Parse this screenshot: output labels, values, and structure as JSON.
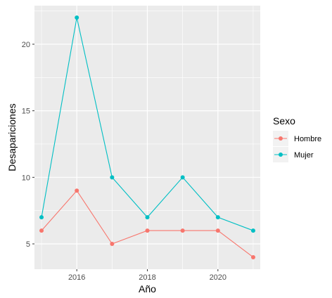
{
  "chart_data": {
    "type": "line",
    "title": "",
    "xlabel": "Año",
    "ylabel": "Desapariciones",
    "x": [
      2015,
      2016,
      2017,
      2018,
      2019,
      2020,
      2021
    ],
    "xlim": [
      2014.8,
      2021.2
    ],
    "ylim": [
      3.1,
      22.9
    ],
    "x_ticks": [
      2016,
      2018,
      2020
    ],
    "y_ticks": [
      5,
      10,
      15,
      20
    ],
    "x_tick_labels": [
      "2016",
      "2018",
      "2020"
    ],
    "y_tick_labels": [
      "5",
      "10",
      "15",
      "20"
    ],
    "grid": true,
    "legend": {
      "title": "Sexo",
      "position": "right"
    },
    "series": [
      {
        "name": "Hombre",
        "color": "#F8766D",
        "values": [
          6,
          9,
          5,
          6,
          6,
          6,
          4
        ]
      },
      {
        "name": "Mujer",
        "color": "#00BFC4",
        "values": [
          7,
          22,
          10,
          7,
          10,
          7,
          6
        ]
      }
    ]
  }
}
